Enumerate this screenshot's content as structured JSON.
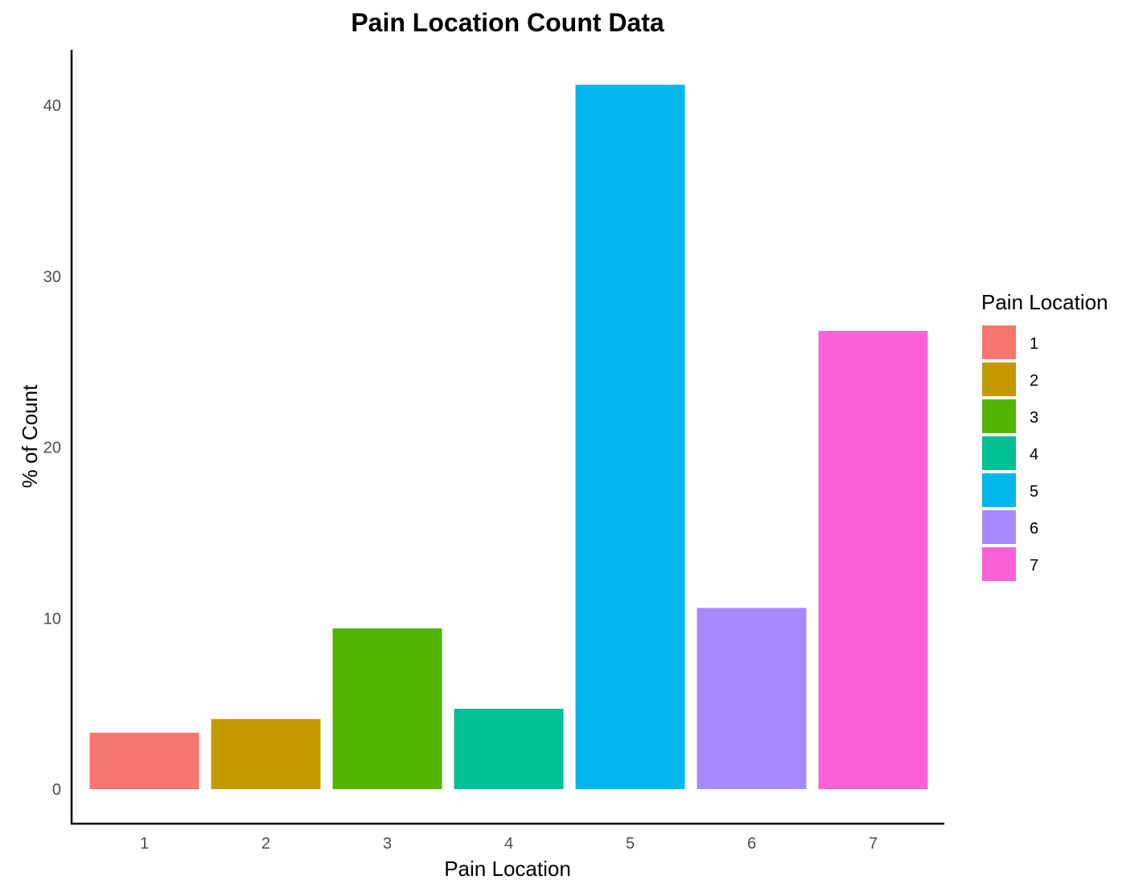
{
  "chart_data": {
    "type": "bar",
    "title": "Pain Location Count Data",
    "xlabel": "Pain Location",
    "ylabel": "% of Count",
    "categories": [
      "1",
      "2",
      "3",
      "4",
      "5",
      "6",
      "7"
    ],
    "values": [
      3.3,
      4.1,
      9.4,
      4.7,
      41.2,
      10.6,
      26.8
    ],
    "colors": [
      "#F8766D",
      "#C49A00",
      "#53B400",
      "#00C094",
      "#00B6EB",
      "#A58AFF",
      "#FB61D7"
    ],
    "yticks": [
      0,
      10,
      20,
      30,
      40
    ],
    "ylim": [
      0,
      43
    ],
    "grid": false,
    "legend": {
      "title": "Pain Location",
      "position": "right",
      "labels": [
        "1",
        "2",
        "3",
        "4",
        "5",
        "6",
        "7"
      ]
    }
  }
}
